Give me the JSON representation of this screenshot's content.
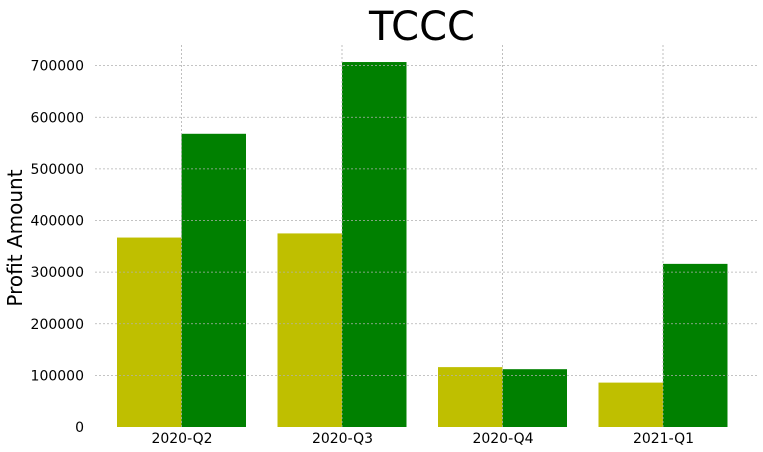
{
  "chart_data": {
    "type": "bar",
    "title": "TCCC",
    "xlabel": "",
    "ylabel": "Profit Amount",
    "categories": [
      "2020-Q2",
      "2020-Q3",
      "2020-Q4",
      "2021-Q1"
    ],
    "series": [
      {
        "values": [
          367000,
          375000,
          116000,
          86000
        ],
        "color": "#bfbf00"
      },
      {
        "values": [
          568000,
          707000,
          112000,
          316000
        ],
        "color": "#008000"
      }
    ],
    "ylim": [
      0,
      740000
    ],
    "yticks": [
      0,
      100000,
      200000,
      300000,
      400000,
      500000,
      600000,
      700000
    ],
    "grid": true,
    "legend": "none"
  }
}
